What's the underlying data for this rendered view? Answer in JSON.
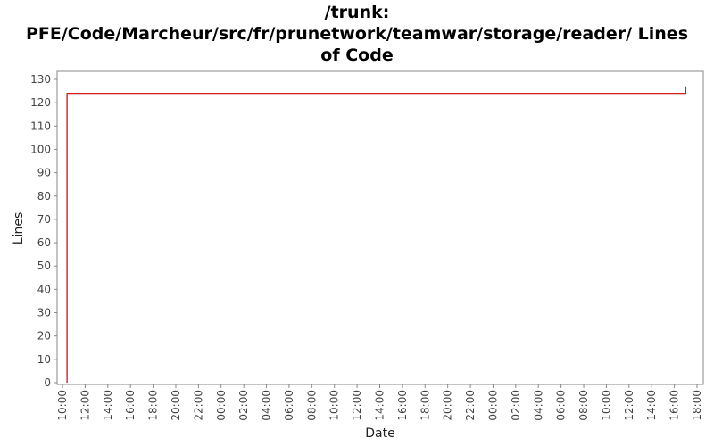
{
  "chart_data": {
    "type": "line",
    "title_lines": [
      "/trunk:",
      "PFE/Code/Marcheur/src/fr/prunetwork/teamwar/storage/reader/ Lines",
      "of Code"
    ],
    "xlabel": "Date",
    "ylabel": "Lines",
    "ylim": [
      0,
      130
    ],
    "y_ticks": [
      0,
      10,
      20,
      30,
      40,
      50,
      60,
      70,
      80,
      90,
      100,
      110,
      120,
      130
    ],
    "x_tick_labels": [
      "10:00",
      "12:00",
      "14:00",
      "16:00",
      "18:00",
      "20:00",
      "22:00",
      "00:00",
      "02:00",
      "04:00",
      "06:00",
      "08:00",
      "10:00",
      "12:00",
      "14:00",
      "16:00",
      "18:00",
      "20:00",
      "22:00",
      "00:00",
      "02:00",
      "04:00",
      "06:00",
      "08:00",
      "10:00",
      "12:00",
      "14:00",
      "16:00",
      "18:00"
    ],
    "xlim_hours": [
      0,
      56
    ],
    "series": [
      {
        "color": "#cc0000",
        "points": [
          {
            "hour": 0.4,
            "lines": 0
          },
          {
            "hour": 0.4,
            "lines": 124
          },
          {
            "hour": 55.0,
            "lines": 124
          },
          {
            "hour": 55.0,
            "lines": 127
          }
        ]
      }
    ],
    "grid": false,
    "legend": "none"
  }
}
